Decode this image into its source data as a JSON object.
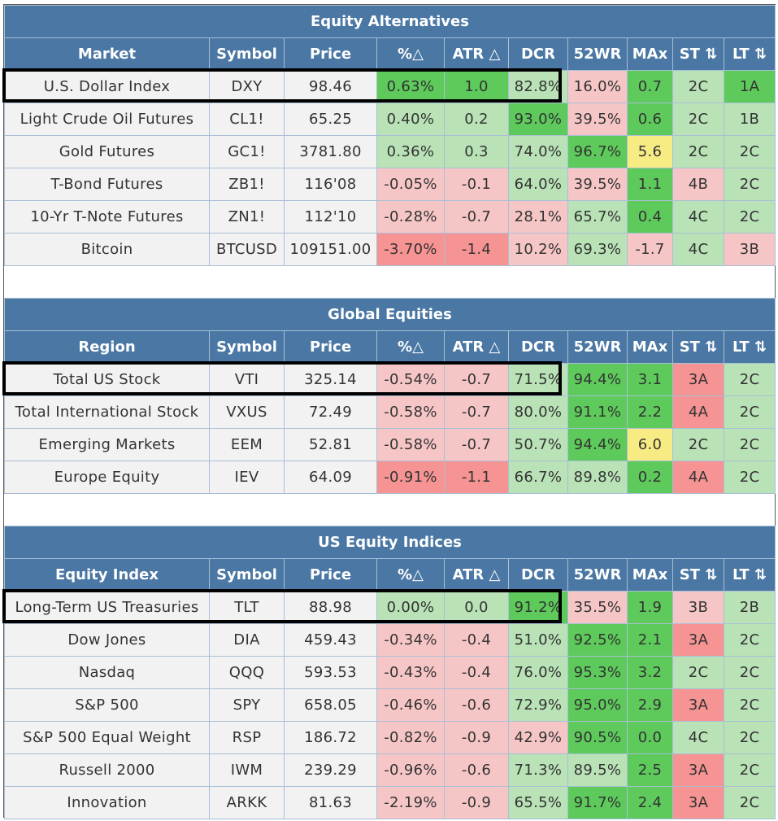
{
  "columns": {
    "price": "Price",
    "pct": "%△",
    "atr": "ATR △",
    "dcr": "DCR",
    "wr52": "52WR",
    "max": "MAx",
    "st": "ST ⇅",
    "lt": "LT ⇅",
    "symbol": "Symbol"
  },
  "colors": {
    "header": "#4a77a4",
    "green_light": "#b9e2b6",
    "green_strong": "#5dca5b",
    "red_light": "#f6c6c6",
    "red_strong": "#f69393",
    "yellow": "#f7ec84"
  },
  "sections": [
    {
      "title": "Equity Alternatives",
      "first_col": "Market",
      "rows": [
        {
          "name": "U.S. Dollar Index",
          "symbol": "DXY",
          "price": "98.46",
          "pct": "0.63%",
          "atr": "1.0",
          "dcr": "82.8%",
          "wr52": "16.0%",
          "max": "0.7",
          "st": "2C",
          "lt": "1A"
        },
        {
          "name": "Light Crude Oil Futures",
          "symbol": "CL1!",
          "price": "65.25",
          "pct": "0.40%",
          "atr": "0.2",
          "dcr": "93.0%",
          "wr52": "39.5%",
          "max": "0.6",
          "st": "2C",
          "lt": "1B"
        },
        {
          "name": "Gold Futures",
          "symbol": "GC1!",
          "price": "3781.80",
          "pct": "0.36%",
          "atr": "0.3",
          "dcr": "74.0%",
          "wr52": "96.7%",
          "max": "5.6",
          "st": "2C",
          "lt": "2C"
        },
        {
          "name": "T-Bond Futures",
          "symbol": "ZB1!",
          "price": "116'08",
          "pct": "-0.05%",
          "atr": "-0.1",
          "dcr": "64.0%",
          "wr52": "39.5%",
          "max": "1.1",
          "st": "4B",
          "lt": "2C"
        },
        {
          "name": "10-Yr T-Note Futures",
          "symbol": "ZN1!",
          "price": "112'10",
          "pct": "-0.28%",
          "atr": "-0.7",
          "dcr": "28.1%",
          "wr52": "65.7%",
          "max": "0.4",
          "st": "4C",
          "lt": "2C"
        },
        {
          "name": "Bitcoin",
          "symbol": "BTCUSD",
          "price": "109151.00",
          "pct": "-3.70%",
          "atr": "-1.4",
          "dcr": "10.2%",
          "wr52": "69.3%",
          "max": "-1.7",
          "st": "4C",
          "lt": "3B"
        }
      ]
    },
    {
      "title": "Global Equities",
      "first_col": "Region",
      "rows": [
        {
          "name": "Total US Stock",
          "symbol": "VTI",
          "price": "325.14",
          "pct": "-0.54%",
          "atr": "-0.7",
          "dcr": "71.5%",
          "wr52": "94.4%",
          "max": "3.1",
          "st": "3A",
          "lt": "2C"
        },
        {
          "name": "Total International Stock",
          "symbol": "VXUS",
          "price": "72.49",
          "pct": "-0.58%",
          "atr": "-0.7",
          "dcr": "80.0%",
          "wr52": "91.1%",
          "max": "2.2",
          "st": "4A",
          "lt": "2C"
        },
        {
          "name": "Emerging Markets",
          "symbol": "EEM",
          "price": "52.81",
          "pct": "-0.58%",
          "atr": "-0.7",
          "dcr": "50.7%",
          "wr52": "94.4%",
          "max": "6.0",
          "st": "2C",
          "lt": "2C"
        },
        {
          "name": "Europe Equity",
          "symbol": "IEV",
          "price": "64.09",
          "pct": "-0.91%",
          "atr": "-1.1",
          "dcr": "66.7%",
          "wr52": "89.8%",
          "max": "0.2",
          "st": "4A",
          "lt": "2C"
        }
      ]
    },
    {
      "title": "US Equity Indices",
      "first_col": "Equity Index",
      "rows": [
        {
          "name": "Long-Term US Treasuries",
          "symbol": "TLT",
          "price": "88.98",
          "pct": "0.00%",
          "atr": "0.0",
          "dcr": "91.2%",
          "wr52": "35.5%",
          "max": "1.9",
          "st": "3B",
          "lt": "2B"
        },
        {
          "name": "Dow Jones",
          "symbol": "DIA",
          "price": "459.43",
          "pct": "-0.34%",
          "atr": "-0.4",
          "dcr": "51.0%",
          "wr52": "92.5%",
          "max": "2.1",
          "st": "3A",
          "lt": "2C"
        },
        {
          "name": "Nasdaq",
          "symbol": "QQQ",
          "price": "593.53",
          "pct": "-0.43%",
          "atr": "-0.4",
          "dcr": "76.0%",
          "wr52": "95.3%",
          "max": "3.2",
          "st": "2C",
          "lt": "2C"
        },
        {
          "name": "S&P 500",
          "symbol": "SPY",
          "price": "658.05",
          "pct": "-0.46%",
          "atr": "-0.6",
          "dcr": "72.9%",
          "wr52": "95.0%",
          "max": "2.9",
          "st": "3A",
          "lt": "2C"
        },
        {
          "name": "S&P 500 Equal Weight",
          "symbol": "RSP",
          "price": "186.72",
          "pct": "-0.82%",
          "atr": "-0.9",
          "dcr": "42.9%",
          "wr52": "90.5%",
          "max": "0.0",
          "st": "4C",
          "lt": "2C"
        },
        {
          "name": "Russell 2000",
          "symbol": "IWM",
          "price": "239.29",
          "pct": "-0.96%",
          "atr": "-0.6",
          "dcr": "71.3%",
          "wr52": "89.5%",
          "max": "2.5",
          "st": "3A",
          "lt": "2C"
        },
        {
          "name": "Innovation",
          "symbol": "ARKK",
          "price": "81.63",
          "pct": "-2.19%",
          "atr": "-0.9",
          "dcr": "65.5%",
          "wr52": "91.7%",
          "max": "2.4",
          "st": "3A",
          "lt": "2C"
        }
      ]
    }
  ]
}
